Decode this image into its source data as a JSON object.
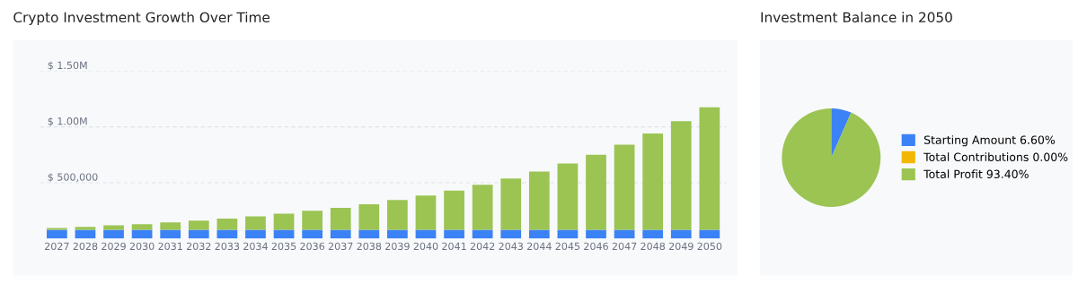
{
  "chart_data": [
    {
      "type": "bar",
      "title": "Crypto Investment Growth Over Time",
      "stacked": true,
      "grid": "y",
      "legend": false,
      "categories": [
        "2027",
        "2028",
        "2029",
        "2030",
        "2031",
        "2032",
        "2033",
        "2034",
        "2035",
        "2036",
        "2037",
        "2038",
        "2039",
        "2040",
        "2041",
        "2042",
        "2043",
        "2044",
        "2045",
        "2046",
        "2047",
        "2048",
        "2049",
        "2050"
      ],
      "series": [
        {
          "color": "#3b82f6",
          "values": [
            78000,
            78000,
            78000,
            78000,
            78000,
            78000,
            78000,
            78000,
            78000,
            78000,
            78000,
            78000,
            78000,
            78000,
            78000,
            78000,
            78000,
            78000,
            78000,
            78000,
            78000,
            78000,
            78000,
            78000
          ]
        },
        {
          "color": "#9bc453",
          "values": [
            16000,
            26000,
            40000,
            50000,
            66000,
            82000,
            101000,
            120000,
            144000,
            171000,
            197000,
            229000,
            267000,
            307000,
            352000,
            403000,
            459000,
            521000,
            593000,
            673000,
            762000,
            863000,
            973000,
            1098000
          ]
        }
      ],
      "ylim": [
        0,
        1500000
      ],
      "yticks": [
        {
          "value": 500000,
          "label": "$ 500,000"
        },
        {
          "value": 1000000,
          "label": "$ 1.00M"
        },
        {
          "value": 1500000,
          "label": "$ 1.50M"
        }
      ]
    },
    {
      "type": "pie",
      "title": "Investment Balance in 2050",
      "legend": "right",
      "categories": [
        "Starting Amount",
        "Total Contributions",
        "Total Profit"
      ],
      "values": [
        6.6,
        0,
        93.4
      ],
      "value_labels": [
        "6.60%",
        "0.00%",
        "93.40%"
      ],
      "colors": [
        "#3b82f6",
        "#f2b705",
        "#9bc453"
      ]
    }
  ]
}
